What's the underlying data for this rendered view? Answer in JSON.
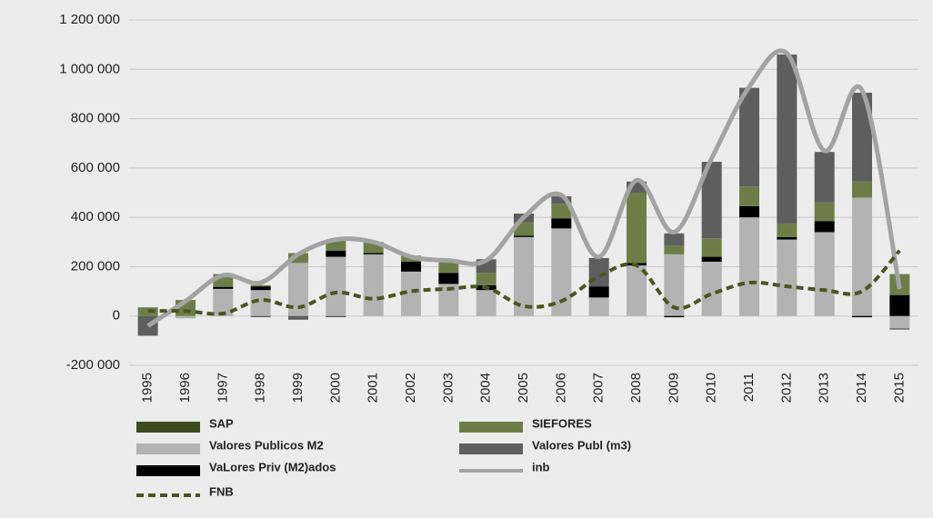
{
  "chart_data": {
    "type": "bar",
    "categories": [
      "1995",
      "1996",
      "1997",
      "1998",
      "1999",
      "2000",
      "2001",
      "2002",
      "2003",
      "2004",
      "2005",
      "2006",
      "2007",
      "2008",
      "2009",
      "2010",
      "2011",
      "2012",
      "2013",
      "2014",
      "2015"
    ],
    "series": [
      {
        "name": "Valores Publicos M2",
        "color": "#b3b3b3",
        "values": [
          0,
          -10000,
          110000,
          105000,
          215000,
          240000,
          250000,
          180000,
          130000,
          105000,
          320000,
          355000,
          75000,
          205000,
          250000,
          220000,
          400000,
          310000,
          340000,
          480000,
          -50000
        ]
      },
      {
        "name": "VaLores Priv (M2)ados",
        "color": "#000000",
        "values": [
          0,
          0,
          8000,
          15000,
          0,
          25000,
          5000,
          40000,
          45000,
          20000,
          5000,
          40000,
          45000,
          10000,
          -5000,
          20000,
          45000,
          10000,
          45000,
          -5000,
          85000
        ]
      },
      {
        "name": "SAP",
        "color": "#3f4a1e",
        "values": [
          0,
          0,
          2000,
          0,
          0,
          0,
          0,
          0,
          0,
          0,
          0,
          0,
          0,
          0,
          0,
          0,
          0,
          0,
          0,
          0,
          0
        ]
      },
      {
        "name": "SIEFORES",
        "color": "#6e7d48",
        "values": [
          35000,
          65000,
          50000,
          5000,
          40000,
          40000,
          45000,
          25000,
          45000,
          50000,
          55000,
          60000,
          0,
          285000,
          35000,
          75000,
          80000,
          55000,
          75000,
          65000,
          85000
        ]
      },
      {
        "name": "Valores Publ (m3)",
        "color": "#5e5e5e",
        "values": [
          -80000,
          0,
          0,
          -5000,
          -15000,
          -5000,
          0,
          0,
          0,
          55000,
          35000,
          30000,
          115000,
          45000,
          50000,
          310000,
          400000,
          685000,
          205000,
          360000,
          -5000
        ]
      },
      {
        "name": "inb",
        "type": "line",
        "color": "#a3a3a3",
        "values": [
          -40000,
          60000,
          165000,
          135000,
          250000,
          310000,
          300000,
          240000,
          225000,
          225000,
          400000,
          490000,
          240000,
          550000,
          340000,
          640000,
          930000,
          1065000,
          670000,
          915000,
          110000
        ]
      },
      {
        "name": "FNB",
        "type": "line",
        "dashed": true,
        "color": "#4a5520",
        "values": [
          20000,
          20000,
          10000,
          65000,
          35000,
          95000,
          70000,
          100000,
          110000,
          115000,
          40000,
          60000,
          160000,
          205000,
          35000,
          90000,
          135000,
          120000,
          105000,
          100000,
          265000
        ]
      }
    ],
    "legend_order": [
      2,
      3,
      0,
      4,
      1,
      5,
      6
    ],
    "ylim": [
      -200000,
      1200000
    ],
    "yticks": [
      {
        "value": -200000,
        "label": "-200 000"
      },
      0,
      {
        "value": 200000,
        "label": "200 000"
      },
      {
        "value": 400000,
        "label": "400 000"
      },
      {
        "value": 600000,
        "label": "600 000"
      },
      {
        "value": 800000,
        "label": "800 000"
      },
      {
        "value": 1000000,
        "label": "1 000 000"
      },
      {
        "value": 1200000,
        "label": "1 200 000"
      }
    ],
    "grid": true
  }
}
